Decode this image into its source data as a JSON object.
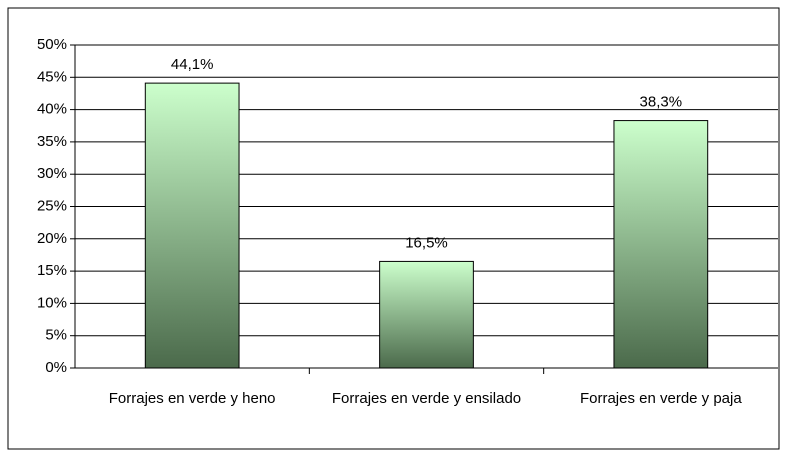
{
  "chart_data": {
    "type": "bar",
    "categories": [
      "Forrajes en verde y heno",
      "Forrajes en verde y ensilado",
      "Forrajes en verde y paja"
    ],
    "values": [
      44.1,
      16.5,
      38.3
    ],
    "value_labels": [
      "44,1%",
      "16,5%",
      "38,3%"
    ],
    "gradient": [
      "#ccffcc",
      "#4b6a4b"
    ],
    "ylim": [
      0,
      50
    ],
    "yticks": [
      {
        "value": 0,
        "label": "0%"
      },
      {
        "value": 5,
        "label": "5%"
      },
      {
        "value": 10,
        "label": "10%"
      },
      {
        "value": 15,
        "label": "15%"
      },
      {
        "value": 20,
        "label": "20%"
      },
      {
        "value": 25,
        "label": "25%"
      },
      {
        "value": 30,
        "label": "30%"
      },
      {
        "value": 35,
        "label": "35%"
      },
      {
        "value": 40,
        "label": "40%"
      },
      {
        "value": 45,
        "label": "45%"
      },
      {
        "value": 50,
        "label": "50%"
      }
    ],
    "grid": true
  }
}
